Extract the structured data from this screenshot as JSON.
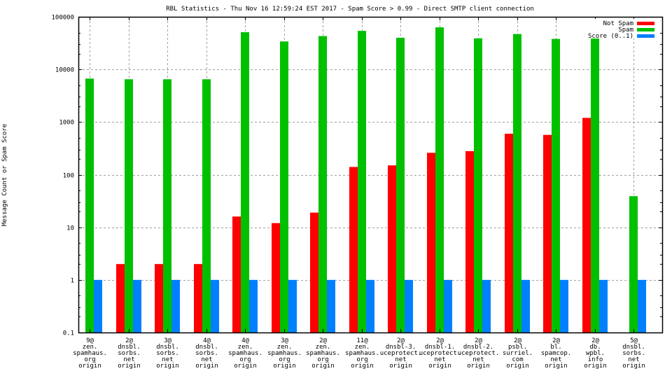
{
  "chart_data": {
    "type": "bar",
    "title": "RBL Statistics - Thu Nov 16 12:59:24 EST 2017 - Spam Score > 0.99 - Direct SMTP client connection",
    "xlabel": "",
    "ylabel": "Message Count or Spam Score",
    "yscale": "log",
    "ylim": [
      0.1,
      100000
    ],
    "yticks": [
      "0.1",
      "1",
      "10",
      "100",
      "1000",
      "10000",
      "100000"
    ],
    "ytick_values": [
      0.1,
      1,
      10,
      100,
      1000,
      10000,
      100000
    ],
    "grid": true,
    "legend_position": "top-right",
    "categories": [
      [
        "9@",
        "zen.",
        "spamhaus.",
        "org",
        "origin"
      ],
      [
        "2@",
        "dnsbl.",
        "sorbs.",
        "net",
        "origin"
      ],
      [
        "3@",
        "dnsbl.",
        "sorbs.",
        "net",
        "origin"
      ],
      [
        "4@",
        "dnsbl.",
        "sorbs.",
        "net",
        "origin"
      ],
      [
        "4@",
        "zen.",
        "spamhaus.",
        "org",
        "origin"
      ],
      [
        "3@",
        "zen.",
        "spamhaus.",
        "org",
        "origin"
      ],
      [
        "2@",
        "zen.",
        "spamhaus.",
        "org",
        "origin"
      ],
      [
        "11@",
        "zen.",
        "spamhaus.",
        "org",
        "origin"
      ],
      [
        "2@",
        "dnsbl-3.",
        "uceprotect.",
        "net",
        "origin"
      ],
      [
        "2@",
        "dnsbl-1.",
        "uceprotect.",
        "net",
        "origin"
      ],
      [
        "2@",
        "dnsbl-2.",
        "uceprotect.",
        "net",
        "origin"
      ],
      [
        "2@",
        "psbl.",
        "surriel.",
        "com",
        "origin"
      ],
      [
        "2@",
        "bl.",
        "spamcop.",
        "net",
        "origin"
      ],
      [
        "2@",
        "db.",
        "wpbl.",
        "info",
        "origin"
      ],
      [
        "5@",
        "dnsbl.",
        "sorbs.",
        "net",
        "origin"
      ]
    ],
    "series": [
      {
        "name": "Not Spam",
        "color": "#ff0000",
        "values": [
          0,
          2,
          2,
          2,
          16,
          12,
          19,
          140,
          150,
          260,
          280,
          600,
          570,
          1200,
          0
        ]
      },
      {
        "name": "Spam",
        "color": "#00c000",
        "values": [
          6700,
          6500,
          6500,
          6500,
          51000,
          34000,
          43000,
          54000,
          40000,
          63000,
          39000,
          47000,
          38000,
          61000,
          39
        ]
      },
      {
        "name": "Score (0..1)",
        "color": "#0080ff",
        "values": [
          1,
          1,
          1,
          1,
          1,
          1,
          1,
          1,
          1,
          1,
          1,
          1,
          1,
          1,
          1
        ]
      }
    ]
  }
}
